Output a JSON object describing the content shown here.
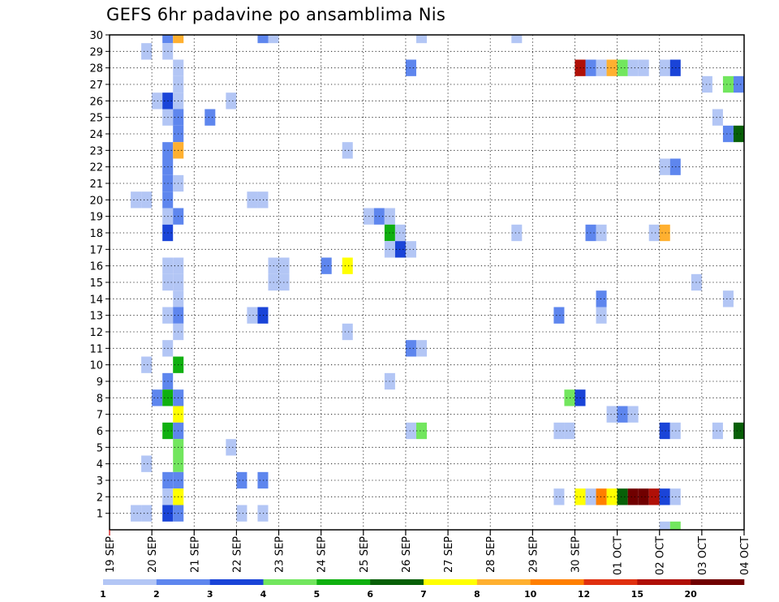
{
  "chart_data": {
    "type": "heatmap",
    "title": "GEFS 6hr padavine po ansamblima Nis",
    "xlabel": "",
    "ylabel": "",
    "x_ticks": [
      "19 SEP",
      "20 SEP",
      "21 SEP",
      "22 SEP",
      "23 SEP",
      "24 SEP",
      "25 SEP",
      "26 SEP",
      "27 SEP",
      "28 SEP",
      "29 SEP",
      "30 SEP",
      "01 OCT",
      "02 OCT",
      "03 OCT",
      "04 OCT"
    ],
    "y_ticks": [
      "1",
      "2",
      "3",
      "4",
      "5",
      "6",
      "7",
      "8",
      "9",
      "10",
      "11",
      "12",
      "13",
      "14",
      "15",
      "16",
      "17",
      "18",
      "19",
      "20",
      "21",
      "22",
      "23",
      "24",
      "25",
      "26",
      "27",
      "28",
      "29",
      "30"
    ],
    "x_unit": "6-hour steps from 19 SEP 00Z",
    "xlim": [
      0,
      60
    ],
    "ylim": [
      0,
      30
    ],
    "grid": true,
    "legend_position": "bottom",
    "legend": {
      "labels": [
        "1",
        "2",
        "3",
        "4",
        "5",
        "6",
        "7",
        "8",
        "10",
        "12",
        "15",
        "20"
      ],
      "colors": [
        "#b3c6f5",
        "#5e86ee",
        "#1a44d8",
        "#72e65e",
        "#10b010",
        "#086008",
        "#ffff00",
        "#ffb030",
        "#ff7f00",
        "#e03010",
        "#b01008",
        "#700000"
      ]
    },
    "cells": [
      {
        "t": 5.5,
        "m": 30,
        "v": 2
      },
      {
        "t": 6.5,
        "m": 30,
        "v": 8
      },
      {
        "t": 14.5,
        "m": 30,
        "v": 2
      },
      {
        "t": 15.5,
        "m": 30,
        "v": 1
      },
      {
        "t": 29.5,
        "m": 30,
        "v": 1
      },
      {
        "t": 38.5,
        "m": 30,
        "v": 1
      },
      {
        "t": 3.5,
        "m": 29,
        "v": 1
      },
      {
        "t": 5.5,
        "m": 29,
        "v": 1
      },
      {
        "t": 6.5,
        "m": 28,
        "v": 1
      },
      {
        "t": 28.5,
        "m": 28,
        "v": 2
      },
      {
        "t": 44.5,
        "m": 28,
        "v": 15
      },
      {
        "t": 45.5,
        "m": 28,
        "v": 2
      },
      {
        "t": 46.5,
        "m": 28,
        "v": 1
      },
      {
        "t": 47.5,
        "m": 28,
        "v": 8
      },
      {
        "t": 48.5,
        "m": 28,
        "v": 4
      },
      {
        "t": 49.5,
        "m": 28,
        "v": 1
      },
      {
        "t": 50.5,
        "m": 28,
        "v": 1
      },
      {
        "t": 52.5,
        "m": 28,
        "v": 1
      },
      {
        "t": 53.5,
        "m": 28,
        "v": 3
      },
      {
        "t": 6.5,
        "m": 27,
        "v": 1
      },
      {
        "t": 56.5,
        "m": 27,
        "v": 1
      },
      {
        "t": 58.5,
        "m": 27,
        "v": 4
      },
      {
        "t": 59.5,
        "m": 27,
        "v": 2
      },
      {
        "t": 4.5,
        "m": 26,
        "v": 1
      },
      {
        "t": 5.5,
        "m": 26,
        "v": 3
      },
      {
        "t": 6.5,
        "m": 26,
        "v": 1
      },
      {
        "t": 11.5,
        "m": 26,
        "v": 1
      },
      {
        "t": 5.5,
        "m": 25,
        "v": 1
      },
      {
        "t": 6.5,
        "m": 25,
        "v": 2
      },
      {
        "t": 9.5,
        "m": 25,
        "v": 2
      },
      {
        "t": 57.5,
        "m": 25,
        "v": 1
      },
      {
        "t": 6.5,
        "m": 24,
        "v": 2
      },
      {
        "t": 58.5,
        "m": 24,
        "v": 2
      },
      {
        "t": 59.5,
        "m": 24,
        "v": 6
      },
      {
        "t": 5.5,
        "m": 23,
        "v": 2
      },
      {
        "t": 6.5,
        "m": 23,
        "v": 8
      },
      {
        "t": 22.5,
        "m": 23,
        "v": 1
      },
      {
        "t": 5.5,
        "m": 22,
        "v": 2
      },
      {
        "t": 52.5,
        "m": 22,
        "v": 1
      },
      {
        "t": 53.5,
        "m": 22,
        "v": 2
      },
      {
        "t": 5.5,
        "m": 21,
        "v": 2
      },
      {
        "t": 6.5,
        "m": 21,
        "v": 1
      },
      {
        "t": 2.5,
        "m": 20,
        "v": 1
      },
      {
        "t": 3.5,
        "m": 20,
        "v": 1
      },
      {
        "t": 5.5,
        "m": 20,
        "v": 2
      },
      {
        "t": 13.5,
        "m": 20,
        "v": 1
      },
      {
        "t": 14.5,
        "m": 20,
        "v": 1
      },
      {
        "t": 5.5,
        "m": 19,
        "v": 1
      },
      {
        "t": 6.5,
        "m": 19,
        "v": 2
      },
      {
        "t": 24.5,
        "m": 19,
        "v": 1
      },
      {
        "t": 25.5,
        "m": 19,
        "v": 2
      },
      {
        "t": 26.5,
        "m": 19,
        "v": 1
      },
      {
        "t": 5.5,
        "m": 18,
        "v": 3
      },
      {
        "t": 26.5,
        "m": 18,
        "v": 5
      },
      {
        "t": 27.5,
        "m": 18,
        "v": 1
      },
      {
        "t": 38.5,
        "m": 18,
        "v": 1
      },
      {
        "t": 45.5,
        "m": 18,
        "v": 2
      },
      {
        "t": 46.5,
        "m": 18,
        "v": 1
      },
      {
        "t": 51.5,
        "m": 18,
        "v": 1
      },
      {
        "t": 52.5,
        "m": 18,
        "v": 8
      },
      {
        "t": 26.5,
        "m": 17,
        "v": 1
      },
      {
        "t": 27.5,
        "m": 17,
        "v": 3
      },
      {
        "t": 28.5,
        "m": 17,
        "v": 1
      },
      {
        "t": 15.5,
        "m": 16,
        "v": 1
      },
      {
        "t": 16.5,
        "m": 16,
        "v": 1
      },
      {
        "t": 20.5,
        "m": 16,
        "v": 2
      },
      {
        "t": 22.5,
        "m": 16,
        "v": 7
      },
      {
        "t": 5.5,
        "m": 16,
        "v": 1
      },
      {
        "t": 6.5,
        "m": 16,
        "v": 1
      },
      {
        "t": 5.5,
        "m": 15,
        "v": 1
      },
      {
        "t": 6.5,
        "m": 15,
        "v": 1
      },
      {
        "t": 15.5,
        "m": 15,
        "v": 1
      },
      {
        "t": 16.5,
        "m": 15,
        "v": 1
      },
      {
        "t": 55.5,
        "m": 15,
        "v": 1
      },
      {
        "t": 6.5,
        "m": 14,
        "v": 1
      },
      {
        "t": 46.5,
        "m": 14,
        "v": 2
      },
      {
        "t": 58.5,
        "m": 14,
        "v": 1
      },
      {
        "t": 5.5,
        "m": 13,
        "v": 1
      },
      {
        "t": 6.5,
        "m": 13,
        "v": 2
      },
      {
        "t": 13.5,
        "m": 13,
        "v": 1
      },
      {
        "t": 14.5,
        "m": 13,
        "v": 3
      },
      {
        "t": 42.5,
        "m": 13,
        "v": 2
      },
      {
        "t": 46.5,
        "m": 13,
        "v": 1
      },
      {
        "t": 6.5,
        "m": 12,
        "v": 1
      },
      {
        "t": 22.5,
        "m": 12,
        "v": 1
      },
      {
        "t": 5.5,
        "m": 11,
        "v": 1
      },
      {
        "t": 28.5,
        "m": 11,
        "v": 2
      },
      {
        "t": 29.5,
        "m": 11,
        "v": 1
      },
      {
        "t": 3.5,
        "m": 10,
        "v": 1
      },
      {
        "t": 6.5,
        "m": 10,
        "v": 5
      },
      {
        "t": 5.5,
        "m": 9,
        "v": 2
      },
      {
        "t": 26.5,
        "m": 9,
        "v": 1
      },
      {
        "t": 4.5,
        "m": 8,
        "v": 2
      },
      {
        "t": 5.5,
        "m": 8,
        "v": 5
      },
      {
        "t": 6.5,
        "m": 8,
        "v": 2
      },
      {
        "t": 43.5,
        "m": 8,
        "v": 4
      },
      {
        "t": 44.5,
        "m": 8,
        "v": 3
      },
      {
        "t": 6.5,
        "m": 7,
        "v": 7
      },
      {
        "t": 47.5,
        "m": 7,
        "v": 1
      },
      {
        "t": 48.5,
        "m": 7,
        "v": 2
      },
      {
        "t": 49.5,
        "m": 7,
        "v": 1
      },
      {
        "t": 5.5,
        "m": 6,
        "v": 5
      },
      {
        "t": 6.5,
        "m": 6,
        "v": 2
      },
      {
        "t": 28.5,
        "m": 6,
        "v": 1
      },
      {
        "t": 29.5,
        "m": 6,
        "v": 4
      },
      {
        "t": 42.5,
        "m": 6,
        "v": 1
      },
      {
        "t": 43.5,
        "m": 6,
        "v": 1
      },
      {
        "t": 52.5,
        "m": 6,
        "v": 3
      },
      {
        "t": 53.5,
        "m": 6,
        "v": 1
      },
      {
        "t": 57.5,
        "m": 6,
        "v": 1
      },
      {
        "t": 59.5,
        "m": 6,
        "v": 6
      },
      {
        "t": 6.5,
        "m": 5,
        "v": 4
      },
      {
        "t": 11.5,
        "m": 5,
        "v": 1
      },
      {
        "t": 3.5,
        "m": 4,
        "v": 1
      },
      {
        "t": 6.5,
        "m": 4,
        "v": 4
      },
      {
        "t": 5.5,
        "m": 3,
        "v": 2
      },
      {
        "t": 6.5,
        "m": 3,
        "v": 2
      },
      {
        "t": 12.5,
        "m": 3,
        "v": 2
      },
      {
        "t": 14.5,
        "m": 3,
        "v": 2
      },
      {
        "t": 5.5,
        "m": 2,
        "v": 1
      },
      {
        "t": 6.5,
        "m": 2,
        "v": 7
      },
      {
        "t": 42.5,
        "m": 2,
        "v": 1
      },
      {
        "t": 44.5,
        "m": 2,
        "v": 7
      },
      {
        "t": 45.5,
        "m": 2,
        "v": 1
      },
      {
        "t": 46.5,
        "m": 2,
        "v": 10
      },
      {
        "t": 47.5,
        "m": 2,
        "v": 7
      },
      {
        "t": 48.5,
        "m": 2,
        "v": 6
      },
      {
        "t": 49.5,
        "m": 2,
        "v": 20
      },
      {
        "t": 50.5,
        "m": 2,
        "v": 20
      },
      {
        "t": 51.5,
        "m": 2,
        "v": 15
      },
      {
        "t": 52.5,
        "m": 2,
        "v": 3
      },
      {
        "t": 53.5,
        "m": 2,
        "v": 1
      },
      {
        "t": 2.5,
        "m": 1,
        "v": 1
      },
      {
        "t": 3.5,
        "m": 1,
        "v": 1
      },
      {
        "t": 5.5,
        "m": 1,
        "v": 3
      },
      {
        "t": 6.5,
        "m": 1,
        "v": 2
      },
      {
        "t": 12.5,
        "m": 1,
        "v": 1
      },
      {
        "t": 14.5,
        "m": 1,
        "v": 1
      },
      {
        "t": 52.5,
        "m": 0,
        "v": 1
      },
      {
        "t": 53.5,
        "m": 0,
        "v": 4
      }
    ]
  }
}
